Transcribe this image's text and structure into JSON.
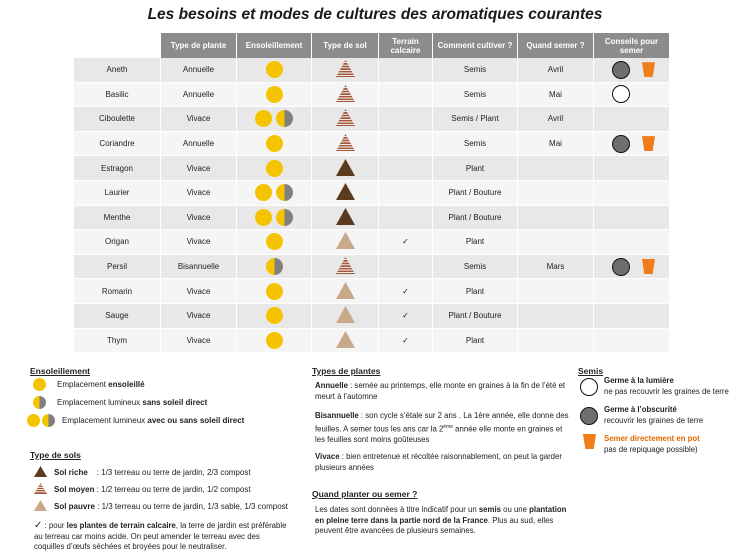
{
  "title": "Les besoins et modes de cultures des aromatiques courantes",
  "headers": [
    "Type de plante",
    "Ensoleillement",
    "Type de sol",
    "Terrain calcaire",
    "Comment cultiver ?",
    "Quand  semer ?",
    "Conseils pour semer"
  ],
  "rows": [
    {
      "name": "Aneth",
      "type": "Annuelle",
      "sun": [
        "full"
      ],
      "soil": "sol-moyen",
      "calc": "",
      "how": "Semis",
      "when": "Avril",
      "tips": [
        "dark",
        "pot"
      ]
    },
    {
      "name": "Basilic",
      "type": "Annuelle",
      "sun": [
        "full"
      ],
      "soil": "sol-moyen",
      "calc": "",
      "how": "Semis",
      "when": "Mai",
      "tips": [
        "white"
      ]
    },
    {
      "name": "Ciboulette",
      "type": "Vivace",
      "sun": [
        "full",
        "half"
      ],
      "soil": "sol-moyen",
      "calc": "",
      "how": "Semis / Plant",
      "when": "Avril",
      "tips": []
    },
    {
      "name": "Coriandre",
      "type": "Annuelle",
      "sun": [
        "full"
      ],
      "soil": "sol-moyen",
      "calc": "",
      "how": "Semis",
      "when": "Mai",
      "tips": [
        "dark",
        "pot"
      ]
    },
    {
      "name": "Estragon",
      "type": "Vivace",
      "sun": [
        "full"
      ],
      "soil": "sol-riche",
      "calc": "",
      "how": "Plant",
      "when": "",
      "tips": []
    },
    {
      "name": "Laurier",
      "type": "Vivace",
      "sun": [
        "full",
        "half"
      ],
      "soil": "sol-riche",
      "calc": "",
      "how": "Plant / Bouture",
      "when": "",
      "tips": []
    },
    {
      "name": "Menthe",
      "type": "Vivace",
      "sun": [
        "full",
        "half"
      ],
      "soil": "sol-riche",
      "calc": "",
      "how": "Plant / Bouture",
      "when": "",
      "tips": []
    },
    {
      "name": "Origan",
      "type": "Vivace",
      "sun": [
        "full"
      ],
      "soil": "sol-pauvre",
      "calc": "✓",
      "how": "Plant",
      "when": "",
      "tips": []
    },
    {
      "name": "Persil",
      "type": "Bisannuelle",
      "sun": [
        "half"
      ],
      "soil": "sol-moyen",
      "calc": "",
      "how": "Semis",
      "when": "Mars",
      "tips": [
        "dark",
        "pot"
      ]
    },
    {
      "name": "Romarin",
      "type": "Vivace",
      "sun": [
        "full"
      ],
      "soil": "sol-pauvre",
      "calc": "✓",
      "how": "Plant",
      "when": "",
      "tips": []
    },
    {
      "name": "Sauge",
      "type": "Vivace",
      "sun": [
        "full"
      ],
      "soil": "sol-pauvre",
      "calc": "✓",
      "how": "Plant / Bouture",
      "when": "",
      "tips": []
    },
    {
      "name": "Thym",
      "type": "Vivace",
      "sun": [
        "full"
      ],
      "soil": "sol-pauvre",
      "calc": "✓",
      "how": "Plant",
      "when": "",
      "tips": []
    }
  ],
  "legend": {
    "ensoleillement": {
      "title": "Ensoleillement",
      "l1_pre": "Emplacement ",
      "l1_b": "ensoleillé",
      "l2_pre": "Emplacement lumineux ",
      "l2_b": "sans soleil direct",
      "l3_pre": "Emplacement lumineux ",
      "l3_b": "avec ou sans soleil direct"
    },
    "sols": {
      "title": "Type de sols",
      "riche_b": "Sol riche",
      "riche_t": "    : 1/3 terreau ou terre de jardin, 2/3 compost",
      "moyen_b": "Sol moyen",
      "moyen_t": " : 1/2 terreau ou terre de jardin, 1/2 compost",
      "pauvre_b": "Sol pauvre",
      "pauvre_t": " : 1/3 terreau ou terre de jardin, 1/3 sable, 1/3 compost"
    },
    "calcaire": {
      "check": "✓",
      "t1": " : pour ",
      "b1": "les plantes de terrain calcaire",
      "t2": ", la terre de jardin est préférable au terreau car moins acide. On peut amender le terreau avec des coquilles d’œufs séchées et broyées pour le neutraliser."
    },
    "types": {
      "title": "Types de plantes",
      "annuelle_b": "Annuelle",
      "annuelle_t": " : semée au printemps, elle monte en graines à la fin de l’été et meurt à l’automne",
      "bisannuelle_b": "Bisannuelle",
      "bisannuelle_t1": " : son cycle s’étale sur 2 ans . La 1ère année, elle donne des feuilles. A semer tous les ans car la 2",
      "bisannuelle_sup": "ème",
      "bisannuelle_t2": " année elle monte en graines et les feuilles sont moins goûteuses",
      "vivace_b": "Vivace",
      "vivace_t": " : bien entretenue et récoltée raisonnablement, on peut la garder plusieurs années"
    },
    "quand": {
      "title": "Quand planter ou semer ?",
      "t1": "Les dates sont données à titre indicatif pour un ",
      "b1": "semis",
      "t2": " ou une ",
      "b2": "plantation en pleine terre dans la partie nord de la France",
      "t3": ". Plus au sud, elles peuvent être avancées de plusieurs semaines."
    },
    "semis": {
      "title": "Semis",
      "lumiere_b": "Germe à la lumière",
      "lumiere_t": "ne pas recouvrir les graines de terre",
      "obscurite_b": "Germe à l’obscurité",
      "obscurite_t": "recouvrir les graines de terre",
      "pot_b": "Semer directement en pot",
      "pot_t": "pas de repiquage possible)"
    }
  },
  "colors": {
    "sun": "#f5c400",
    "shade": "#808080",
    "header": "#8c8c8c",
    "pot": "#f07d1a",
    "sol_riche": "#5b3a1e",
    "sol_moyen": "#a0583a",
    "sol_pauvre": "#c8a98a"
  }
}
